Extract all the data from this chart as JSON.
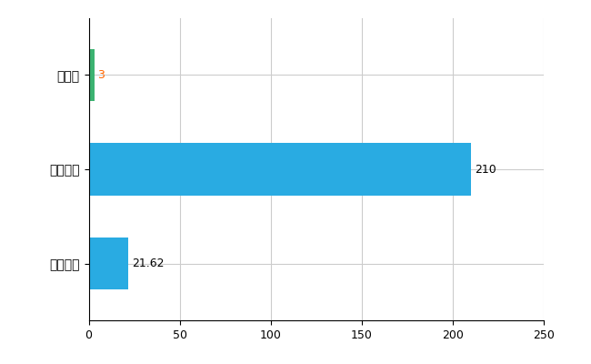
{
  "categories": [
    "全国平均",
    "全国最大",
    "栃木県"
  ],
  "values": [
    21.62,
    210,
    3
  ],
  "bar_colors": [
    "#29ABE2",
    "#29ABE2",
    "#3CB371"
  ],
  "value_labels": [
    "21.62",
    "210",
    "3"
  ],
  "value_colors": [
    "#000000",
    "#000000",
    "#FF6600"
  ],
  "xlim": [
    0,
    250
  ],
  "xticks": [
    0,
    50,
    100,
    150,
    200,
    250
  ],
  "background_color": "#FFFFFF",
  "grid_color": "#CCCCCC",
  "bar_height": 0.55,
  "figsize": [
    6.5,
    4.0
  ],
  "dpi": 100
}
